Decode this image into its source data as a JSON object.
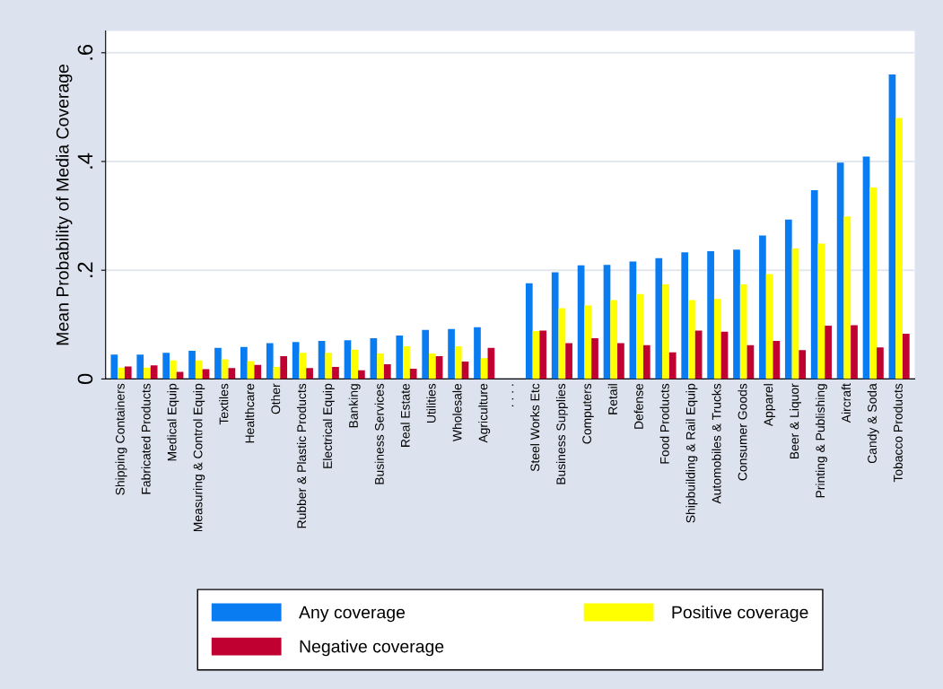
{
  "chart_data": {
    "type": "bar",
    "ylabel": "Mean Probability of Media Coverage",
    "categories": [
      "Shipping Containers",
      "Fabricated Products",
      "Medical Equip",
      "Measuring & Control Equip",
      "Textiles",
      "Healthcare",
      "Other",
      "Rubber & Plastic Products",
      "Electrical Equip",
      "Banking",
      "Business Services",
      "Real Estate",
      "Utilities",
      "Wholesale",
      "Agriculture",
      ". . . .",
      "Steel Works Etc",
      "Business Supplies",
      "Computers",
      "Retail",
      "Defense",
      "Food Products",
      "Shipbuilding & Rail Equip",
      "Automobiles & Trucks",
      "Consumer Goods",
      "Apparel",
      "Beer & Liquor",
      "Printing & Publishing",
      "Aircraft",
      "Candy & Soda",
      "Tobacco Products"
    ],
    "series": [
      {
        "name": "Any coverage",
        "color": "#0a7cf2",
        "values": [
          0.045,
          0.045,
          0.048,
          0.052,
          0.057,
          0.059,
          0.066,
          0.068,
          0.07,
          0.071,
          0.075,
          0.08,
          0.09,
          0.092,
          0.095,
          null,
          0.176,
          0.196,
          0.209,
          0.21,
          0.216,
          0.222,
          0.233,
          0.235,
          0.238,
          0.264,
          0.293,
          0.347,
          0.398,
          0.409,
          0.56
        ]
      },
      {
        "name": "Positive coverage",
        "color": "#ffff00",
        "values": [
          0.021,
          0.021,
          0.034,
          0.034,
          0.036,
          0.033,
          0.022,
          0.048,
          0.048,
          0.054,
          0.047,
          0.06,
          0.047,
          0.06,
          0.038,
          null,
          0.088,
          0.13,
          0.135,
          0.145,
          0.156,
          0.174,
          0.145,
          0.147,
          0.174,
          0.193,
          0.24,
          0.249,
          0.299,
          0.352,
          0.48
        ]
      },
      {
        "name": "Negative coverage",
        "color": "#c00030",
        "values": [
          0.023,
          0.025,
          0.013,
          0.018,
          0.02,
          0.026,
          0.042,
          0.02,
          0.022,
          0.016,
          0.027,
          0.019,
          0.042,
          0.032,
          0.057,
          null,
          0.089,
          0.066,
          0.075,
          0.066,
          0.062,
          0.049,
          0.089,
          0.087,
          0.062,
          0.07,
          0.053,
          0.098,
          0.099,
          0.058,
          0.083
        ]
      }
    ],
    "ylim": [
      0,
      0.64
    ],
    "yticks": [
      {
        "value": 0,
        "label": "0"
      },
      {
        "value": 0.2,
        "label": ".2"
      },
      {
        "value": 0.4,
        "label": ".4"
      },
      {
        "value": 0.6,
        "label": ".6"
      }
    ],
    "grid": "y",
    "legend": "bottom"
  }
}
